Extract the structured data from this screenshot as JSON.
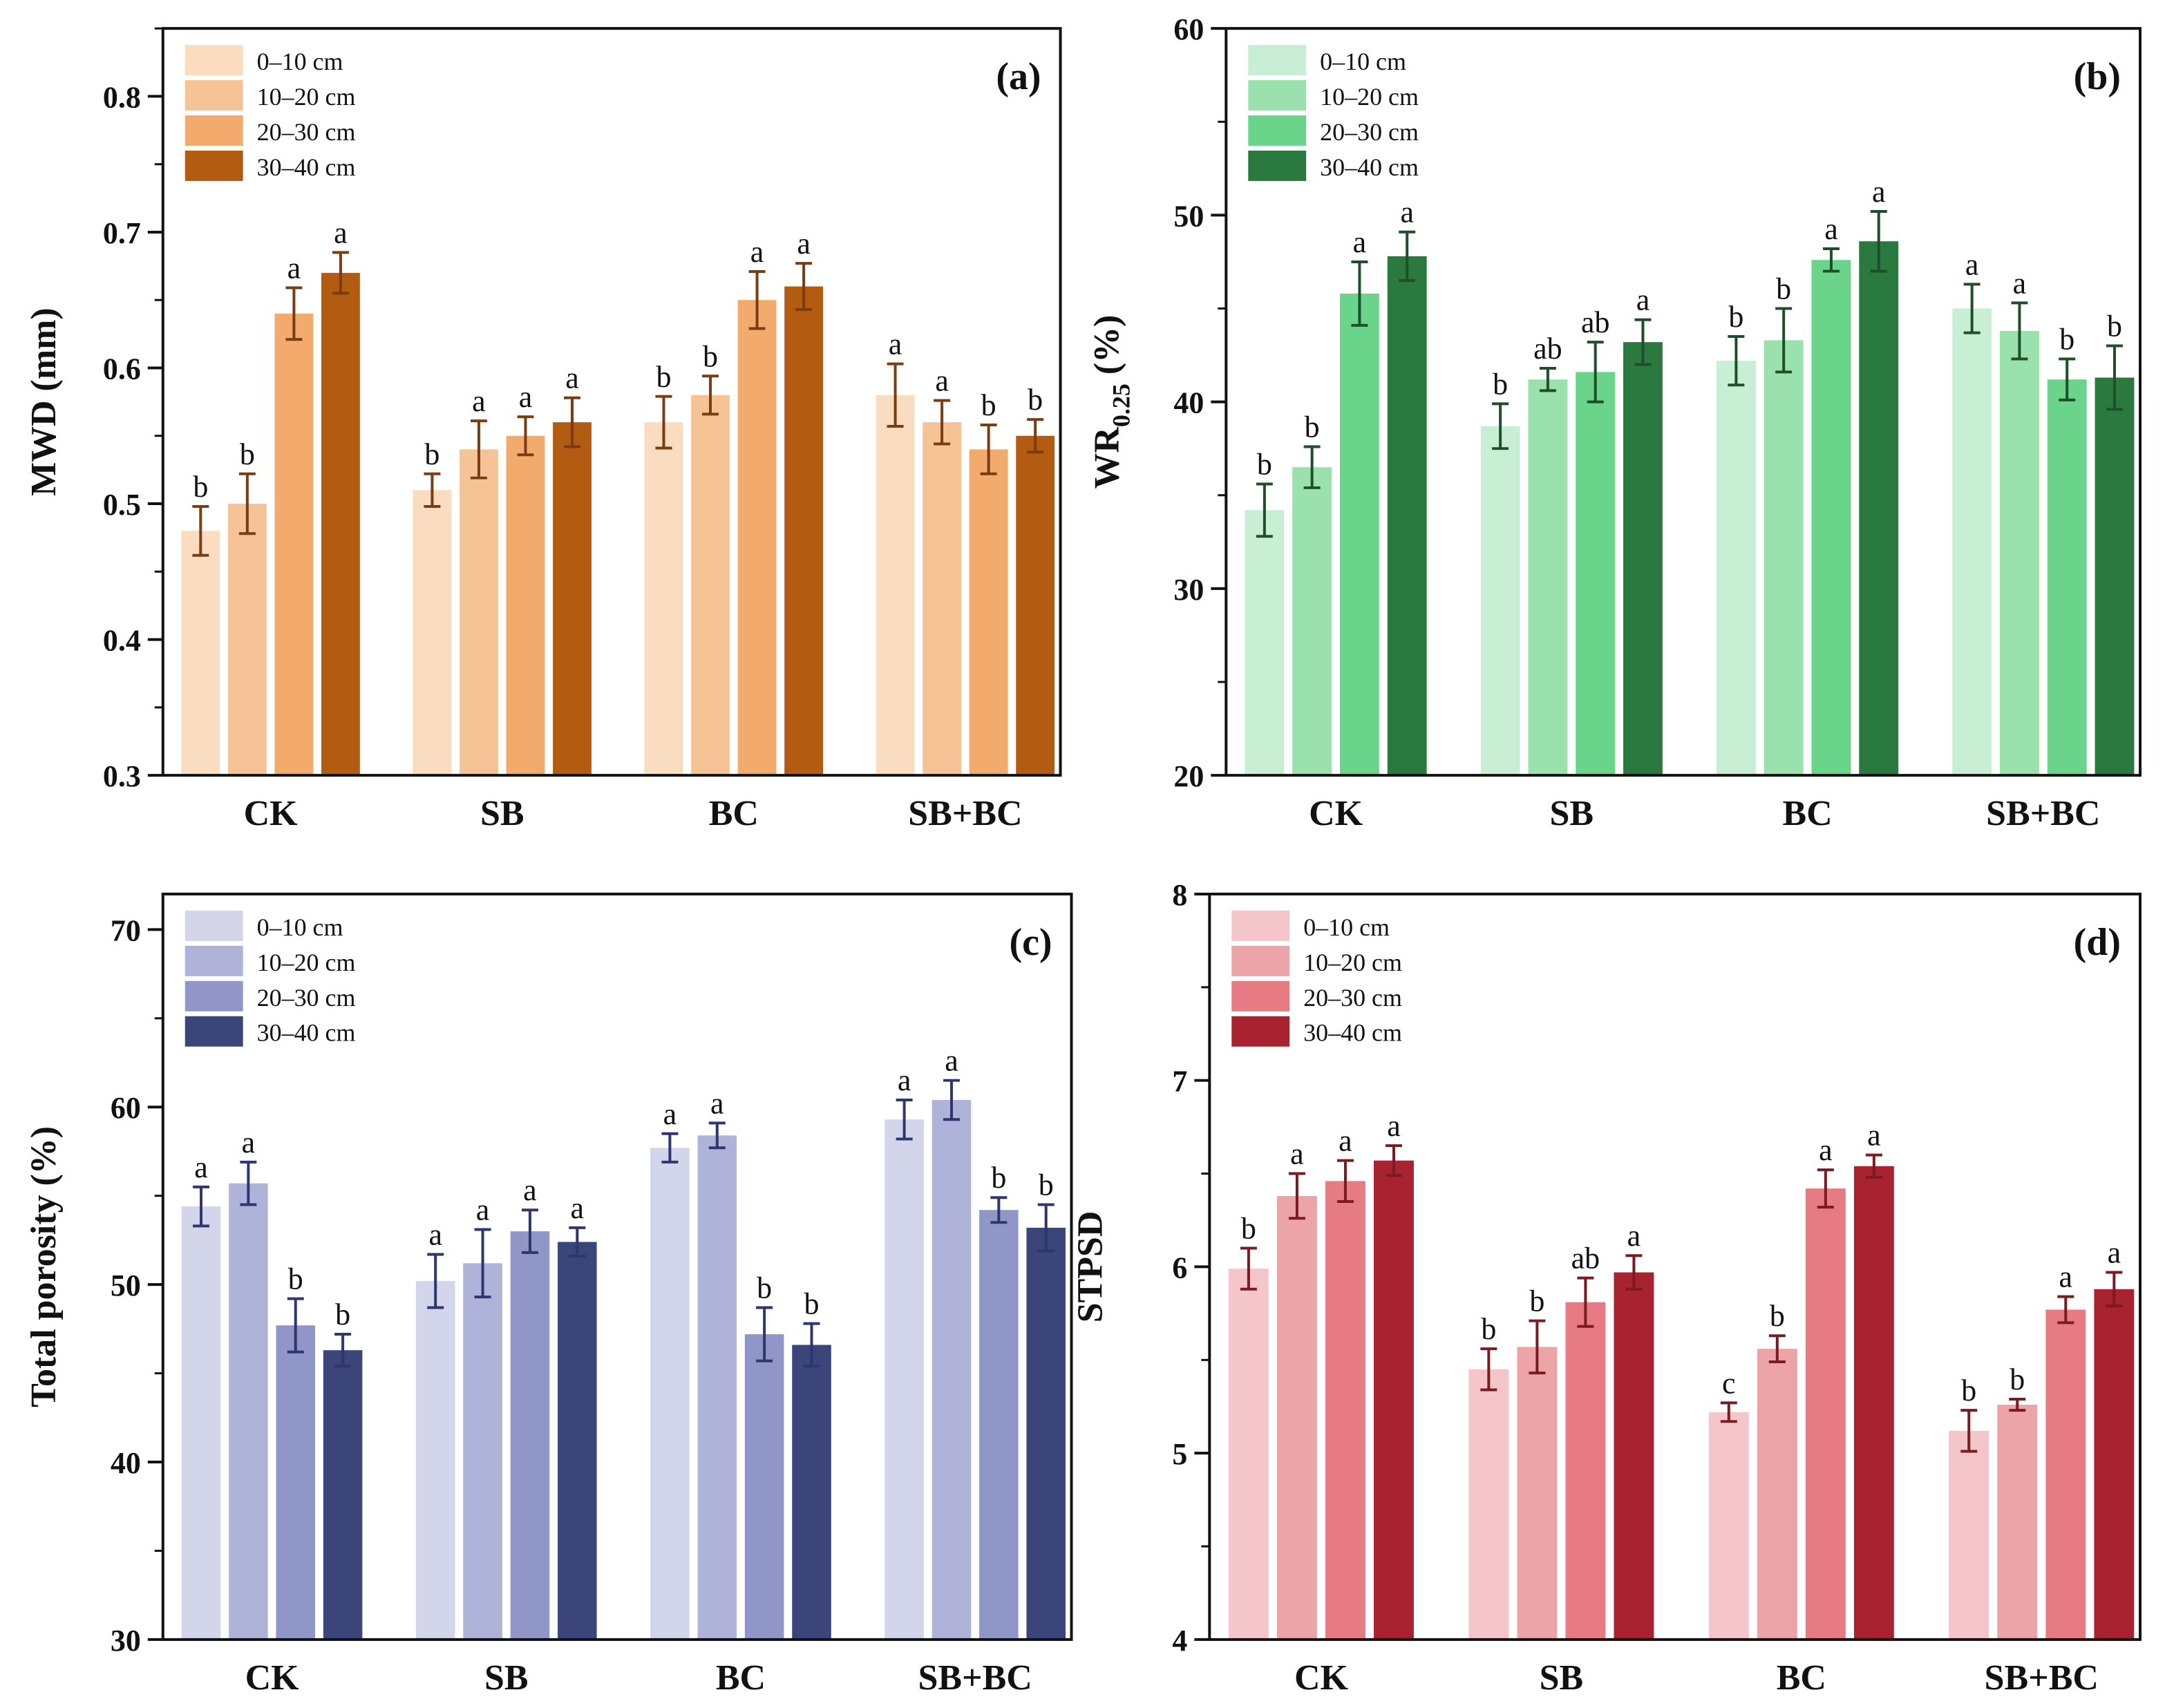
{
  "chart_data": [
    {
      "type": "bar",
      "panel_label": "(a)",
      "ylabel": "MWD (mm)",
      "ylim": [
        0.3,
        0.85
      ],
      "yticks": [
        "0.3",
        "0.4",
        "0.5",
        "0.6",
        "0.7",
        "0.8"
      ],
      "ytick_values": [
        0.3,
        0.4,
        0.5,
        0.6,
        0.7,
        0.8
      ],
      "minor_step": 0.05,
      "categories": [
        "CK",
        "SB",
        "BC",
        "SB+BC"
      ],
      "legend_position": "top-left",
      "series": [
        {
          "name": "0–10 cm",
          "color": "#fadcc0",
          "values": [
            0.48,
            0.51,
            0.56,
            0.58
          ],
          "errors": [
            0.018,
            0.012,
            0.019,
            0.023
          ],
          "letters": [
            "b",
            "b",
            "b",
            "a"
          ]
        },
        {
          "name": "10–20 cm",
          "color": "#f6c397",
          "values": [
            0.5,
            0.54,
            0.58,
            0.56
          ],
          "errors": [
            0.022,
            0.021,
            0.014,
            0.016
          ],
          "letters": [
            "b",
            "a",
            "b",
            "a"
          ]
        },
        {
          "name": "20–30 cm",
          "color": "#f2ab6c",
          "values": [
            0.64,
            0.55,
            0.65,
            0.54
          ],
          "errors": [
            0.019,
            0.014,
            0.021,
            0.018
          ],
          "letters": [
            "a",
            "a",
            "a",
            "b"
          ]
        },
        {
          "name": "30–40 cm",
          "color": "#b45b12",
          "values": [
            0.67,
            0.56,
            0.66,
            0.55
          ],
          "errors": [
            0.015,
            0.018,
            0.017,
            0.012
          ],
          "letters": [
            "a",
            "a",
            "a",
            "b"
          ]
        }
      ],
      "error_color": "#7a3c12"
    },
    {
      "type": "bar",
      "panel_label": "(b)",
      "ylabel_main": "WR",
      "ylabel_sub": "0.25",
      "ylabel_unit": " (%)",
      "ylim": [
        20,
        60
      ],
      "yticks": [
        "20",
        "30",
        "40",
        "50",
        "60"
      ],
      "ytick_values": [
        20,
        30,
        40,
        50,
        60
      ],
      "minor_step": 5,
      "categories": [
        "CK",
        "SB",
        "BC",
        "SB+BC"
      ],
      "legend_position": "top-left",
      "series": [
        {
          "name": "0–10 cm",
          "color": "#c8eed4",
          "values": [
            34.2,
            38.7,
            42.2,
            45.0
          ],
          "errors": [
            1.4,
            1.2,
            1.3,
            1.3
          ],
          "letters": [
            "b",
            "b",
            "b",
            "a"
          ]
        },
        {
          "name": "10–20 cm",
          "color": "#9be1ae",
          "values": [
            36.5,
            41.2,
            43.3,
            43.8
          ],
          "errors": [
            1.1,
            0.6,
            1.7,
            1.5
          ],
          "letters": [
            "b",
            "ab",
            "b",
            "a"
          ]
        },
        {
          "name": "20–30 cm",
          "color": "#6bd48b",
          "values": [
            45.8,
            41.6,
            47.6,
            41.2
          ],
          "errors": [
            1.7,
            1.6,
            0.6,
            1.1
          ],
          "letters": [
            "a",
            "ab",
            "a",
            "b"
          ]
        },
        {
          "name": "30–40 cm",
          "color": "#2a7a3f",
          "values": [
            47.8,
            43.2,
            48.6,
            41.3
          ],
          "errors": [
            1.3,
            1.2,
            1.6,
            1.7
          ],
          "letters": [
            "a",
            "a",
            "a",
            "b"
          ]
        }
      ],
      "error_color": "#1f4f2a"
    },
    {
      "type": "bar",
      "panel_label": "(c)",
      "ylabel": "Total porosity (%)",
      "ylim": [
        30,
        72
      ],
      "yticks": [
        "30",
        "40",
        "50",
        "60",
        "70"
      ],
      "ytick_values": [
        30,
        40,
        50,
        60,
        70
      ],
      "minor_step": 5,
      "categories": [
        "CK",
        "SB",
        "BC",
        "SB+BC"
      ],
      "legend_position": "top-left",
      "series": [
        {
          "name": "0–10 cm",
          "color": "#d3d5ea",
          "values": [
            54.4,
            50.2,
            57.7,
            59.3
          ],
          "errors": [
            1.1,
            1.5,
            0.8,
            1.1
          ],
          "letters": [
            "a",
            "a",
            "a",
            "a"
          ]
        },
        {
          "name": "10–20 cm",
          "color": "#afb3d9",
          "values": [
            55.7,
            51.2,
            58.4,
            60.4
          ],
          "errors": [
            1.2,
            1.9,
            0.7,
            1.1
          ],
          "letters": [
            "a",
            "a",
            "a",
            "a"
          ]
        },
        {
          "name": "20–30 cm",
          "color": "#9097c8",
          "values": [
            47.7,
            53.0,
            47.2,
            54.2
          ],
          "errors": [
            1.5,
            1.2,
            1.5,
            0.7
          ],
          "letters": [
            "b",
            "a",
            "b",
            "b"
          ]
        },
        {
          "name": "30–40 cm",
          "color": "#3b4579",
          "values": [
            46.3,
            52.4,
            46.6,
            53.2
          ],
          "errors": [
            0.9,
            0.8,
            1.2,
            1.3
          ],
          "letters": [
            "b",
            "a",
            "b",
            "b"
          ]
        }
      ],
      "error_color": "#2e3670"
    },
    {
      "type": "bar",
      "panel_label": "(d)",
      "ylabel": "STPSD",
      "ylim": [
        4,
        8
      ],
      "yticks": [
        "4",
        "5",
        "6",
        "7",
        "8"
      ],
      "ytick_values": [
        4,
        5,
        6,
        7,
        8
      ],
      "minor_step": 0.5,
      "categories": [
        "CK",
        "SB",
        "BC",
        "SB+BC"
      ],
      "legend_position": "top-left",
      "series": [
        {
          "name": "0–10 cm",
          "color": "#f5c6c9",
          "values": [
            5.99,
            5.45,
            5.22,
            5.12
          ],
          "errors": [
            0.11,
            0.11,
            0.05,
            0.11
          ],
          "letters": [
            "b",
            "b",
            "c",
            "b"
          ]
        },
        {
          "name": "10–20 cm",
          "color": "#eca4a8",
          "values": [
            6.38,
            5.57,
            5.56,
            5.26
          ],
          "errors": [
            0.12,
            0.14,
            0.07,
            0.03
          ],
          "letters": [
            "a",
            "b",
            "b",
            "b"
          ]
        },
        {
          "name": "20–30 cm",
          "color": "#e67b83",
          "values": [
            6.46,
            5.81,
            6.42,
            5.77
          ],
          "errors": [
            0.11,
            0.13,
            0.1,
            0.07
          ],
          "letters": [
            "a",
            "ab",
            "a",
            "a"
          ]
        },
        {
          "name": "30–40 cm",
          "color": "#a8222f",
          "values": [
            6.57,
            5.97,
            6.54,
            5.88
          ],
          "errors": [
            0.08,
            0.09,
            0.06,
            0.09
          ],
          "letters": [
            "a",
            "a",
            "a",
            "a"
          ]
        }
      ],
      "error_color": "#7a1a22"
    }
  ]
}
